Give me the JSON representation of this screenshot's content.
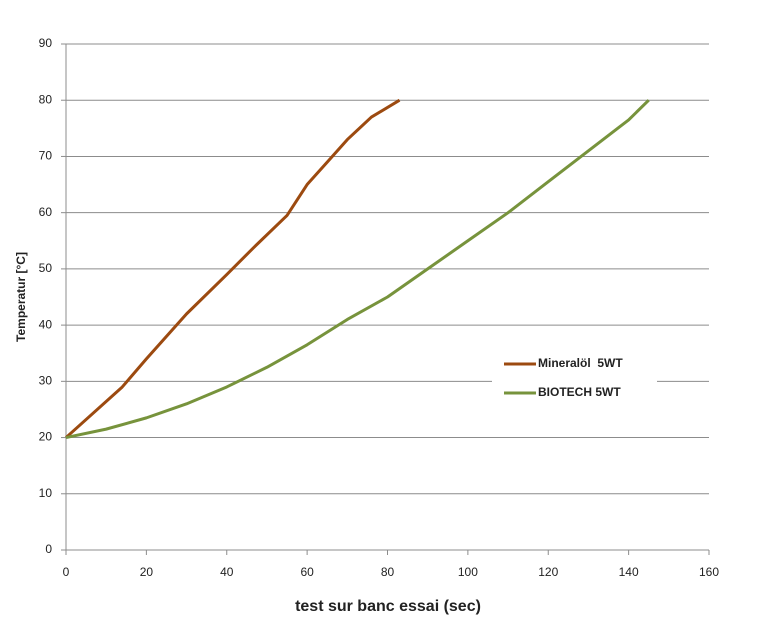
{
  "chart_data": {
    "type": "line",
    "x_label": "test sur banc essai (sec)",
    "y_label": "Temperatur [°C]",
    "xlim": [
      0,
      160
    ],
    "xticks": [
      0,
      20,
      40,
      60,
      80,
      100,
      120,
      140,
      160
    ],
    "ylim": [
      0,
      90
    ],
    "yticks": [
      0,
      10,
      20,
      30,
      40,
      50,
      60,
      70,
      80,
      90
    ],
    "grid": true,
    "legend": "right",
    "series": [
      {
        "name": "Mineralöl  5WT",
        "color": "#9c4a10",
        "x": [
          0,
          14,
          20,
          30,
          40,
          47,
          55,
          60,
          65,
          70,
          76,
          83
        ],
        "values": [
          20,
          29,
          34,
          42,
          49,
          54,
          59.5,
          65,
          69,
          73,
          77,
          80
        ]
      },
      {
        "name": "BIOTECH 5WT",
        "color": "#77933c",
        "x": [
          0,
          10,
          20,
          30,
          40,
          50,
          60,
          70,
          80,
          90,
          100,
          110,
          120,
          130,
          140,
          145
        ],
        "values": [
          20,
          21.5,
          23.5,
          26,
          29,
          32.5,
          36.5,
          41,
          45,
          50,
          55,
          60,
          65.5,
          71,
          76.5,
          80
        ]
      }
    ]
  }
}
